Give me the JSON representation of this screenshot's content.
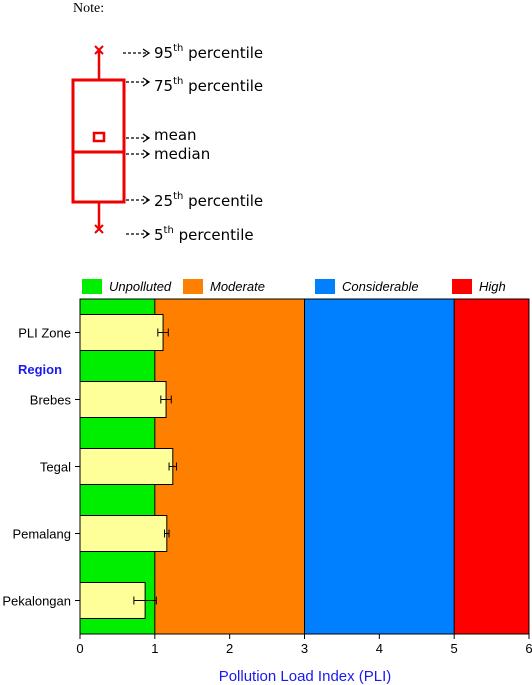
{
  "note": {
    "title": "Note:",
    "labels": {
      "p95": {
        "num": "95",
        "sup": "th",
        "rest": " percentile"
      },
      "p75": {
        "num": "75",
        "sup": "th",
        "rest": " percentile"
      },
      "mean": "mean",
      "median": "median",
      "p25": {
        "num": "25",
        "sup": "th",
        "rest": " percentile"
      },
      "p5": {
        "num": "5",
        "sup": "th",
        "rest": " percentile"
      }
    }
  },
  "chart_data": {
    "type": "bar",
    "orientation": "horizontal",
    "categories": [
      "PLI Zone",
      "Brebes",
      "Tegal",
      "Pemalang",
      "Pekalongan"
    ],
    "group_label": "Region",
    "values": [
      1.11,
      1.15,
      1.24,
      1.16,
      0.87
    ],
    "errors": [
      0.07,
      0.07,
      0.05,
      0.03,
      0.15
    ],
    "xlabel": "Pollution Load Index (PLI)",
    "xlim": [
      0,
      6
    ],
    "xticks": [
      "0",
      "1",
      "2",
      "3",
      "4",
      "5",
      "6"
    ],
    "zones": [
      {
        "name": "Unpolluted",
        "from": 0,
        "to": 1,
        "color": "#00ee00"
      },
      {
        "name": "Moderate",
        "from": 1,
        "to": 3,
        "color": "#ff8000"
      },
      {
        "name": "Considerable",
        "from": 3,
        "to": 5,
        "color": "#0080ff"
      },
      {
        "name": "High",
        "from": 5,
        "to": 6,
        "color": "#ff0000"
      }
    ],
    "bar_color": "#ffff99",
    "legend_position": "top",
    "grid": false
  }
}
